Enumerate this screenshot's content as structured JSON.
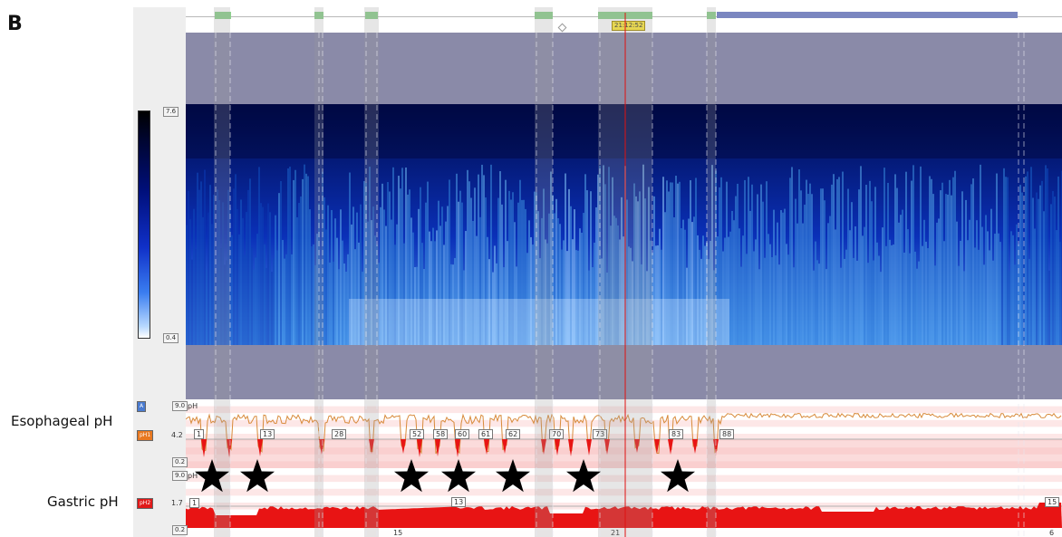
{
  "panel_letter": "B",
  "labels": {
    "esophageal": "Esophageal pH",
    "gastric": "Gastric pH"
  },
  "colorbar": {
    "max": "7.6",
    "min": "0.4"
  },
  "timebar": {
    "cursor_time": "21:12:52"
  },
  "eso": {
    "badge": "A",
    "channel": "pH1",
    "ymax": "9.0",
    "ymid": "4.2",
    "ymin": "0.2",
    "unit": "pH",
    "event_tags": [
      "1",
      "13",
      "28",
      "52",
      "58",
      "60",
      "61",
      "62",
      "70",
      "73",
      "83",
      "88"
    ]
  },
  "gas": {
    "channel": "pH2",
    "ymax": "9.0",
    "ymid": "1.7",
    "ymin": "0.2",
    "unit": "pH",
    "event_tags": [
      "1",
      "13",
      "15"
    ],
    "time_ticks": [
      "15",
      "21",
      "6"
    ]
  },
  "colors": {
    "heat_dark": "#00063a",
    "heat_mid": "#1030d0",
    "heat_light": "#9cc8ff",
    "band": "#8a8aa8",
    "reflux_red": "#e81414",
    "eso_trace": "#d88a3a",
    "cursor": "#e01010",
    "marker_green": "#8ed08e",
    "marker_blue": "#7a86c0"
  },
  "markers": {
    "star_count": 7,
    "star_icon": "black-star-icon"
  }
}
